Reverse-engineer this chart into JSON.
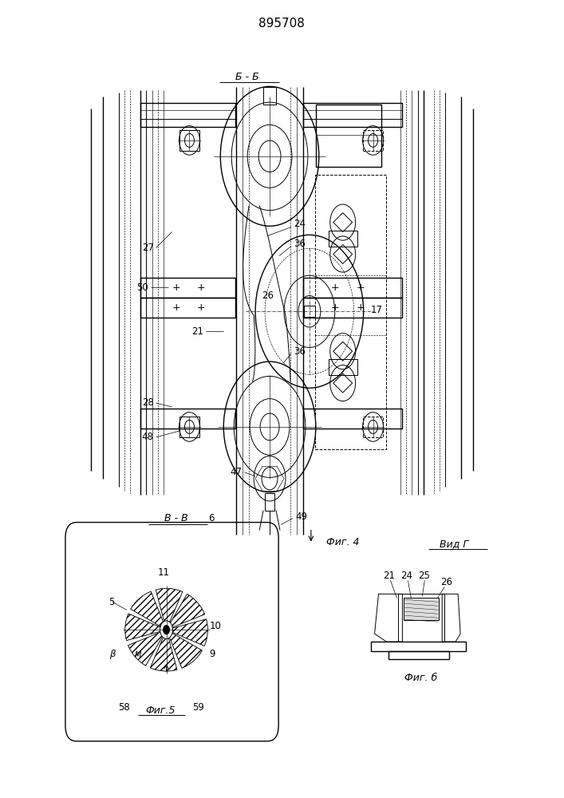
{
  "title": "895708",
  "bg_color": "#ffffff",
  "section_bb": "Б - Б",
  "section_vv": "В - В",
  "vid_g": "Вид Г",
  "fig4_label": "Фиг. 4",
  "fig5_label": "Фиг.5",
  "fig6_label": "Фиг. б"
}
